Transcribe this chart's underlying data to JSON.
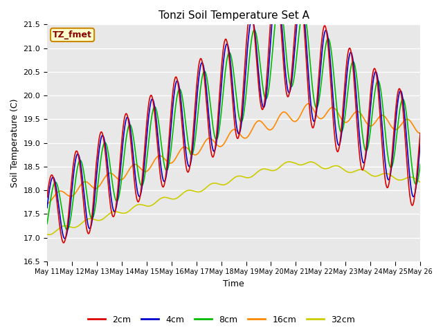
{
  "title": "Tonzi Soil Temperature Set A",
  "xlabel": "Time",
  "ylabel": "Soil Temperature (C)",
  "ylim": [
    16.5,
    21.5
  ],
  "bg_color": "#e8e8e8",
  "legend_label": "TZ_fmet",
  "series_labels": [
    "2cm",
    "4cm",
    "8cm",
    "16cm",
    "32cm"
  ],
  "series_colors": [
    "#dd0000",
    "#0000cc",
    "#00bb00",
    "#ff8800",
    "#cccc00"
  ],
  "x_tick_labels": [
    "May 11",
    "May 12",
    "May 13",
    "May 14",
    "May 15",
    "May 16",
    "May 17",
    "May 18",
    "May 19",
    "May 20",
    "May 21",
    "May 22",
    "May 23",
    "May 24",
    "May 25",
    "May 26"
  ],
  "n_points": 750
}
